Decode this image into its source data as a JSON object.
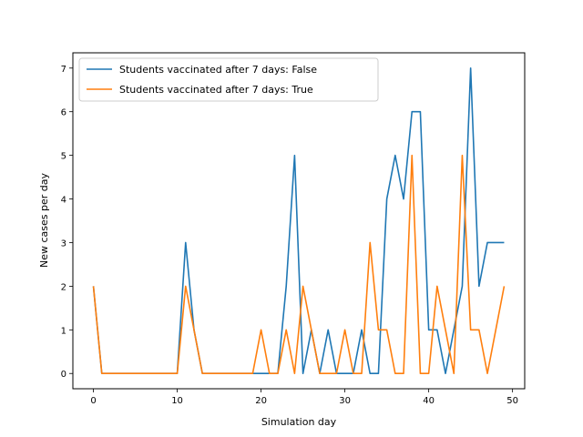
{
  "chart_data": {
    "type": "line",
    "xlabel": "Simulation day",
    "ylabel": "New cases per day",
    "xlim": [
      -2.45,
      51.45
    ],
    "ylim": [
      -0.35,
      7.35
    ],
    "xticks": [
      0,
      10,
      20,
      30,
      40,
      50
    ],
    "yticks": [
      0,
      1,
      2,
      3,
      4,
      5,
      6,
      7
    ],
    "grid": false,
    "legend_position": "top-left",
    "x": [
      0,
      1,
      2,
      3,
      4,
      5,
      6,
      7,
      8,
      9,
      10,
      11,
      12,
      13,
      14,
      15,
      16,
      17,
      18,
      19,
      20,
      21,
      22,
      23,
      24,
      25,
      26,
      27,
      28,
      29,
      30,
      31,
      32,
      33,
      34,
      35,
      36,
      37,
      38,
      39,
      40,
      41,
      42,
      43,
      44,
      45,
      46,
      47,
      48,
      49
    ],
    "series": [
      {
        "name": "Students vaccinated after 7 days: False",
        "color": "#1f77b4",
        "values": [
          2,
          0,
          0,
          0,
          0,
          0,
          0,
          0,
          0,
          0,
          0,
          3,
          1,
          0,
          0,
          0,
          0,
          0,
          0,
          0,
          0,
          0,
          0,
          2,
          5,
          0,
          1,
          0,
          1,
          0,
          0,
          0,
          1,
          0,
          0,
          4,
          5,
          4,
          6,
          6,
          1,
          1,
          0,
          1,
          2,
          7,
          2,
          3,
          3,
          3
        ]
      },
      {
        "name": "Students vaccinated after 7 days: True",
        "color": "#ff7f0e",
        "values": [
          2,
          0,
          0,
          0,
          0,
          0,
          0,
          0,
          0,
          0,
          0,
          2,
          1,
          0,
          0,
          0,
          0,
          0,
          0,
          0,
          1,
          0,
          0,
          1,
          0,
          2,
          1,
          0,
          0,
          0,
          1,
          0,
          0,
          3,
          1,
          1,
          0,
          0,
          5,
          0,
          0,
          2,
          1,
          0,
          5,
          1,
          1,
          0,
          1,
          2
        ]
      }
    ]
  }
}
